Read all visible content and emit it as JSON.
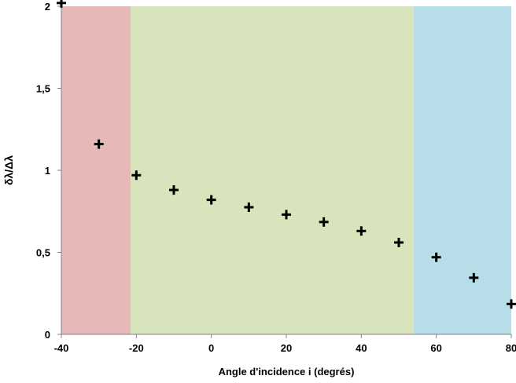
{
  "chart_data": {
    "type": "scatter",
    "title": "",
    "xlabel": "Angle d'incidence i (degrés)",
    "ylabel": "δλ/Δλ",
    "xlim": [
      -40,
      80
    ],
    "ylim": [
      0,
      2
    ],
    "x_ticks": [
      -40,
      -20,
      0,
      20,
      40,
      60,
      80
    ],
    "x_tick_labels": [
      "-40",
      "-20",
      "0",
      "20",
      "40",
      "60",
      "80"
    ],
    "y_ticks": [
      0,
      0.5,
      1,
      1.5,
      2
    ],
    "y_tick_labels": [
      "0",
      "0,5",
      "1",
      "1,5",
      "2"
    ],
    "grid": false,
    "marker": "plus",
    "series": [
      {
        "x": [
          -40,
          -30,
          -20,
          -10,
          0,
          10,
          20,
          30,
          40,
          50,
          60,
          70,
          80
        ],
        "y": [
          2.02,
          1.16,
          0.97,
          0.88,
          0.82,
          0.775,
          0.73,
          0.685,
          0.63,
          0.56,
          0.47,
          0.345,
          0.185
        ]
      }
    ],
    "regions": [
      {
        "x_from": -40,
        "x_to": -21.5,
        "color": "#e6b8b7"
      },
      {
        "x_from": -21.5,
        "x_to": 54,
        "color": "#d8e4bc"
      },
      {
        "x_from": 54,
        "x_to": 80,
        "color": "#b7dde8"
      }
    ]
  }
}
